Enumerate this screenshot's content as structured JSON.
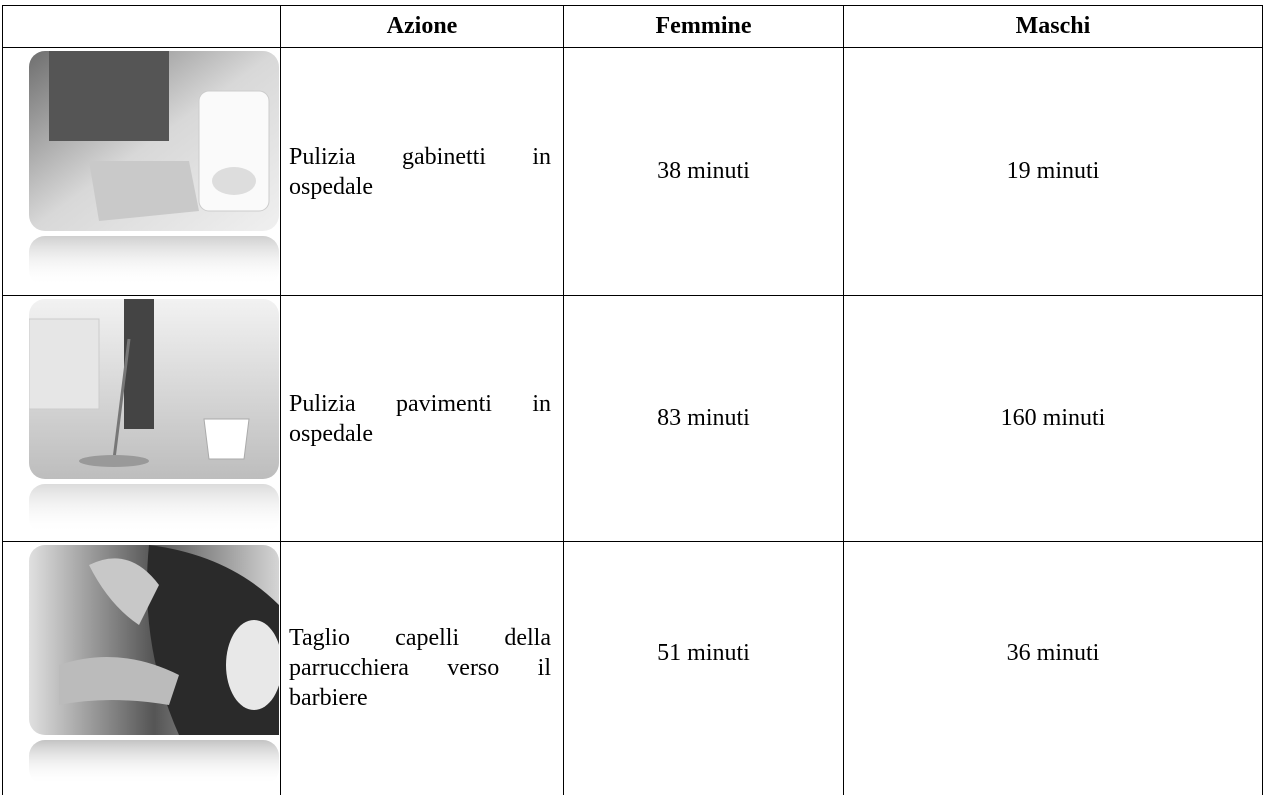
{
  "table": {
    "header": [
      "Azione",
      "Femmine",
      "Maschi"
    ],
    "rows": [
      [
        "Pulizia gabinetti in ospedale",
        "38 minuti",
        "19 minuti"
      ],
      [
        "Pulizia pavimenti in ospedale",
        "83 minuti",
        "160 minuti"
      ],
      [
        "Taglio capelli della parrucchiera verso il barbiere",
        "51 minuti",
        "36 minuti"
      ]
    ]
  }
}
